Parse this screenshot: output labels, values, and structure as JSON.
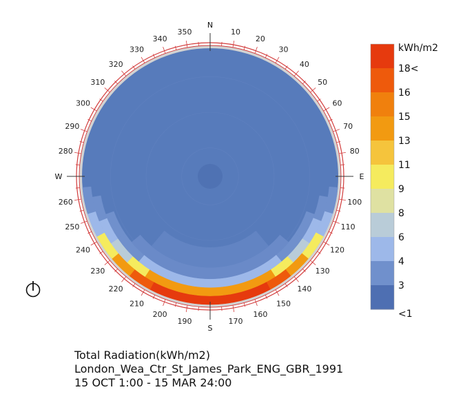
{
  "chart_data": {
    "type": "heatmap",
    "projection": "sky-dome-polar",
    "title_lines": [
      "Total Radiation(kWh/m2)",
      "London_Wea_Ctr_St_James_Park_ENG_GBR_1991",
      "15 OCT 1:00 - 15 MAR 24:00"
    ],
    "cardinals": [
      {
        "label": "N",
        "azimuth": 0
      },
      {
        "label": "E",
        "azimuth": 90
      },
      {
        "label": "S",
        "azimuth": 180
      },
      {
        "label": "W",
        "azimuth": 270
      }
    ],
    "azimuth_labels": [
      10,
      20,
      30,
      40,
      50,
      60,
      70,
      80,
      100,
      110,
      120,
      130,
      140,
      150,
      160,
      170,
      190,
      200,
      210,
      220,
      230,
      240,
      250,
      260,
      280,
      290,
      300,
      310,
      320,
      330,
      340,
      350
    ],
    "legend": {
      "unit": "kWh/m2",
      "labels": [
        "18<",
        "16",
        "15",
        "13",
        "11",
        "9",
        "8",
        "6",
        "4",
        "3",
        "<1"
      ],
      "colors": [
        "#e63a0e",
        "#ee5a0c",
        "#f0800d",
        "#f29a11",
        "#f5c43c",
        "#f5eb5e",
        "#dfe1a2",
        "#b9ccd8",
        "#9db8e9",
        "#7090cc",
        "#4e6fb2"
      ]
    },
    "base_color": "#577bbb",
    "rings": [
      {
        "alt_from": 0,
        "alt_to": 6,
        "cells": [
          {
            "az_from": 95,
            "az_to": 107,
            "color": "#7090cc"
          },
          {
            "az_from": 107,
            "az_to": 118,
            "color": "#9db8e9"
          },
          {
            "az_from": 118,
            "az_to": 130,
            "color": "#f5eb5e"
          },
          {
            "az_from": 130,
            "az_to": 141,
            "color": "#f29a11"
          },
          {
            "az_from": 141,
            "az_to": 152,
            "color": "#ee5a0c"
          },
          {
            "az_from": 152,
            "az_to": 166,
            "color": "#e63a0e"
          },
          {
            "az_from": 166,
            "az_to": 194,
            "color": "#e63a0e"
          },
          {
            "az_from": 194,
            "az_to": 208,
            "color": "#e63a0e"
          },
          {
            "az_from": 208,
            "az_to": 219,
            "color": "#ee5a0c"
          },
          {
            "az_from": 219,
            "az_to": 230,
            "color": "#f29a11"
          },
          {
            "az_from": 230,
            "az_to": 242,
            "color": "#f5eb5e"
          },
          {
            "az_from": 242,
            "az_to": 253,
            "color": "#9db8e9"
          },
          {
            "az_from": 253,
            "az_to": 265,
            "color": "#7090cc"
          }
        ]
      },
      {
        "alt_from": 6,
        "alt_to": 12,
        "cells": [
          {
            "az_from": 100,
            "az_to": 112,
            "color": "#7090cc"
          },
          {
            "az_from": 112,
            "az_to": 124,
            "color": "#9db8e9"
          },
          {
            "az_from": 124,
            "az_to": 136,
            "color": "#b9ccd8"
          },
          {
            "az_from": 136,
            "az_to": 147,
            "color": "#f5eb5e"
          },
          {
            "az_from": 147,
            "az_to": 160,
            "color": "#f29a11"
          },
          {
            "az_from": 160,
            "az_to": 200,
            "color": "#f29a11"
          },
          {
            "az_from": 200,
            "az_to": 213,
            "color": "#f29a11"
          },
          {
            "az_from": 213,
            "az_to": 224,
            "color": "#f5eb5e"
          },
          {
            "az_from": 224,
            "az_to": 236,
            "color": "#b9ccd8"
          },
          {
            "az_from": 236,
            "az_to": 248,
            "color": "#9db8e9"
          },
          {
            "az_from": 248,
            "az_to": 260,
            "color": "#7090cc"
          }
        ]
      },
      {
        "alt_from": 12,
        "alt_to": 18,
        "cells": [
          {
            "az_from": 110,
            "az_to": 124,
            "color": "#7090cc"
          },
          {
            "az_from": 124,
            "az_to": 140,
            "color": "#7090cc"
          },
          {
            "az_from": 140,
            "az_to": 157,
            "color": "#9db8e9"
          },
          {
            "az_from": 157,
            "az_to": 203,
            "color": "#9db8e9"
          },
          {
            "az_from": 203,
            "az_to": 220,
            "color": "#9db8e9"
          },
          {
            "az_from": 220,
            "az_to": 236,
            "color": "#7090cc"
          },
          {
            "az_from": 236,
            "az_to": 250,
            "color": "#7090cc"
          }
        ]
      },
      {
        "alt_from": 18,
        "alt_to": 26,
        "cells": [
          {
            "az_from": 130,
            "az_to": 230,
            "color": "#6a8ac8"
          }
        ]
      },
      {
        "alt_from": 26,
        "alt_to": 40,
        "cells": [
          {
            "az_from": 140,
            "az_to": 220,
            "color": "#6284c3"
          }
        ]
      }
    ]
  },
  "controls": {
    "power_icon": "power-icon"
  }
}
